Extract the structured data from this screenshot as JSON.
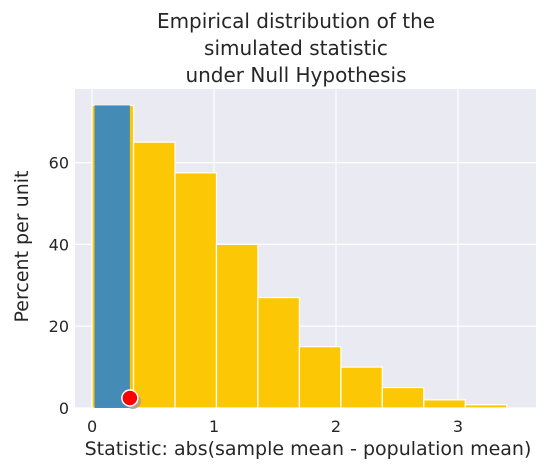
{
  "chart_data": {
    "type": "bar",
    "title_lines": [
      "Empirical distribution of the",
      "simulated statistic",
      "under Null Hypothesis"
    ],
    "xlabel": "Statistic: abs(sample mean - population mean)",
    "ylabel": "Percent per unit",
    "xlim": [
      -0.14,
      3.64
    ],
    "ylim": [
      0,
      78
    ],
    "xticks": [
      0,
      1,
      2,
      3
    ],
    "yticks": [
      0,
      20,
      40,
      60
    ],
    "grid": true,
    "colors": {
      "background": "#EAEAF2",
      "grid": "#FFFFFF",
      "bars": "#FCC805",
      "overlay": "#3A88C0",
      "marker": "#FF0000",
      "text": "#262626"
    },
    "bins": [
      {
        "start": 0.0,
        "end": 0.34,
        "value": 74
      },
      {
        "start": 0.34,
        "end": 0.68,
        "value": 65
      },
      {
        "start": 0.68,
        "end": 1.02,
        "value": 57.5
      },
      {
        "start": 1.02,
        "end": 1.36,
        "value": 40
      },
      {
        "start": 1.36,
        "end": 1.7,
        "value": 27
      },
      {
        "start": 1.7,
        "end": 2.04,
        "value": 15
      },
      {
        "start": 2.04,
        "end": 2.38,
        "value": 10
      },
      {
        "start": 2.38,
        "end": 2.72,
        "value": 5
      },
      {
        "start": 2.72,
        "end": 3.06,
        "value": 2
      },
      {
        "start": 3.06,
        "end": 3.4,
        "value": 0.8
      }
    ],
    "overlay_bar": {
      "start": 0.02,
      "end": 0.31,
      "value": 74
    },
    "observed_statistic": {
      "x": 0.31,
      "y": 0
    }
  }
}
